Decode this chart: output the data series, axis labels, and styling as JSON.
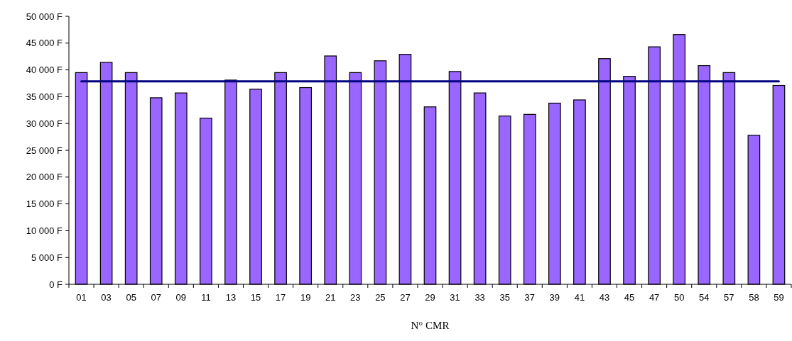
{
  "chart_data": {
    "type": "bar",
    "xlabel": "N° CMR",
    "categories": [
      "01",
      "03",
      "05",
      "07",
      "09",
      "11",
      "13",
      "15",
      "17",
      "19",
      "21",
      "23",
      "25",
      "27",
      "29",
      "31",
      "33",
      "35",
      "37",
      "39",
      "41",
      "43",
      "45",
      "47",
      "50",
      "54",
      "57",
      "58",
      "59"
    ],
    "values": [
      39500,
      41400,
      39500,
      34800,
      35700,
      31000,
      38100,
      36400,
      39500,
      36700,
      42600,
      39500,
      41700,
      42900,
      33100,
      39700,
      35700,
      31400,
      31700,
      33800,
      34400,
      42100,
      38800,
      44300,
      46600,
      40800,
      39500,
      27800,
      37100
    ],
    "color": "#9966ff",
    "ylim": [
      0,
      50000
    ],
    "yticks": [
      {
        "value": 0,
        "label": "0 F"
      },
      {
        "value": 5000,
        "label": "5 000 F"
      },
      {
        "value": 10000,
        "label": "10 000 F"
      },
      {
        "value": 15000,
        "label": "15 000 F"
      },
      {
        "value": 20000,
        "label": "20 000 F"
      },
      {
        "value": 25000,
        "label": "25 000 F"
      },
      {
        "value": 30000,
        "label": "30 000 F"
      },
      {
        "value": 35000,
        "label": "35 000 F"
      },
      {
        "value": 40000,
        "label": "40 000 F"
      },
      {
        "value": 45000,
        "label": "45 000 F"
      },
      {
        "value": 50000,
        "label": "50 000 F"
      }
    ],
    "ref_lines": [
      {
        "axis": "y",
        "value": 37850,
        "color": "#000080"
      }
    ]
  }
}
